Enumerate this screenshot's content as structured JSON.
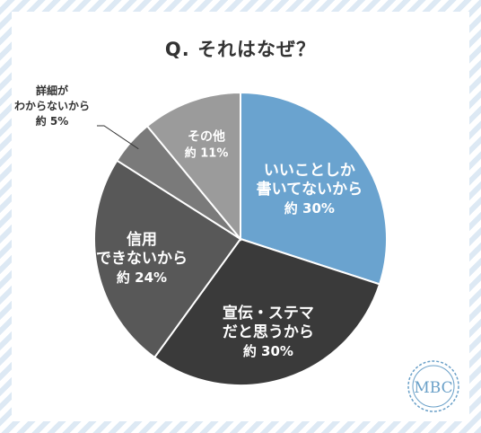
{
  "title": "Q. それはなぜ？",
  "chart_data": {
    "type": "pie",
    "title": "Q. それはなぜ？",
    "slices": [
      {
        "lines": [
          "いいことしか",
          "書いてないから"
        ],
        "value_label": "約 30%",
        "value": 30,
        "color": "#6aa3cf"
      },
      {
        "lines": [
          "宣伝・ステマ",
          "だと思うから"
        ],
        "value_label": "約 30%",
        "value": 30,
        "color": "#3a3a3a"
      },
      {
        "lines": [
          "信用",
          "できないから"
        ],
        "value_label": "約 24%",
        "value": 24,
        "color": "#585858"
      },
      {
        "lines": [
          "詳細が",
          "わからないから"
        ],
        "value_label": "約 5%",
        "value": 5,
        "color": "#7a7a7a"
      },
      {
        "lines": [
          "その他"
        ],
        "value_label": "約 11%",
        "value": 11,
        "color": "#9b9b9b"
      }
    ]
  },
  "logo": {
    "text": "MBC",
    "color": "#6aa0c8"
  }
}
